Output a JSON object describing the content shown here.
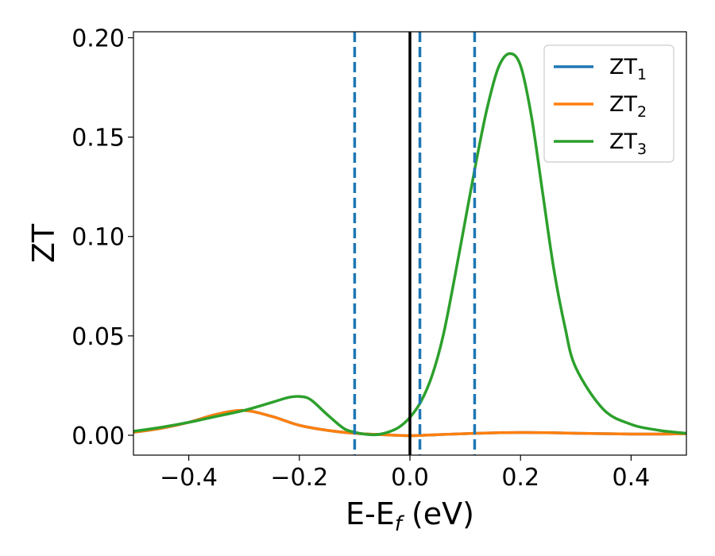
{
  "chart_data": {
    "type": "line",
    "xlabel_main": "E-E",
    "xlabel_sub": "f",
    "xlabel_unit": " (eV)",
    "ylabel": "ZT",
    "xlim": [
      -0.5,
      0.5
    ],
    "ylim": [
      -0.01,
      0.203
    ],
    "xticks": [
      -0.4,
      -0.2,
      0.0,
      0.2,
      0.4
    ],
    "xtick_labels": [
      "−0.4",
      "−0.2",
      "0.0",
      "0.2",
      "0.4"
    ],
    "yticks": [
      0.0,
      0.05,
      0.1,
      0.15,
      0.2
    ],
    "ytick_labels": [
      "0.00",
      "0.05",
      "0.10",
      "0.15",
      "0.20"
    ],
    "legend_position": "top-right",
    "grid": false,
    "vertical_lines": [
      {
        "x": -0.1,
        "style": "dashed",
        "color": "#1f77b4"
      },
      {
        "x": 0.0,
        "style": "solid",
        "color": "#000000"
      },
      {
        "x": 0.018,
        "style": "dashed",
        "color": "#1f77b4"
      },
      {
        "x": 0.117,
        "style": "dashed",
        "color": "#1f77b4"
      }
    ],
    "series": [
      {
        "name": "ZT",
        "name_sub": "1",
        "color": "#1f77b4",
        "x": [
          -0.5,
          -0.45,
          -0.4,
          -0.35,
          -0.3,
          -0.25,
          -0.2,
          -0.15,
          -0.1,
          -0.05,
          0.0,
          0.05,
          0.1,
          0.15,
          0.2,
          0.25,
          0.3,
          0.35,
          0.4,
          0.45,
          0.5
        ],
        "y": [
          0.0015,
          0.0035,
          0.0065,
          0.0105,
          0.0125,
          0.0095,
          0.005,
          0.0025,
          0.001,
          0.0003,
          -0.0002,
          0.0003,
          0.0008,
          0.0012,
          0.0014,
          0.0013,
          0.001,
          0.0008,
          0.0006,
          0.0006,
          0.0008
        ]
      },
      {
        "name": "ZT",
        "name_sub": "2",
        "color": "#ff7f0e",
        "x": [
          -0.5,
          -0.45,
          -0.4,
          -0.35,
          -0.3,
          -0.25,
          -0.2,
          -0.15,
          -0.1,
          -0.05,
          0.0,
          0.05,
          0.1,
          0.15,
          0.2,
          0.25,
          0.3,
          0.35,
          0.4,
          0.45,
          0.5
        ],
        "y": [
          0.0015,
          0.0035,
          0.0065,
          0.0105,
          0.0125,
          0.0095,
          0.005,
          0.0025,
          0.001,
          0.0003,
          -0.0002,
          0.0003,
          0.0008,
          0.0012,
          0.0014,
          0.0013,
          0.001,
          0.0008,
          0.0006,
          0.0006,
          0.0008
        ]
      },
      {
        "name": "ZT",
        "name_sub": "3",
        "color": "#2ca02c",
        "x": [
          -0.5,
          -0.45,
          -0.4,
          -0.35,
          -0.3,
          -0.25,
          -0.22,
          -0.2,
          -0.18,
          -0.15,
          -0.12,
          -0.1,
          -0.08,
          -0.06,
          -0.04,
          -0.02,
          0.0,
          0.02,
          0.04,
          0.06,
          0.08,
          0.1,
          0.12,
          0.14,
          0.16,
          0.18,
          0.2,
          0.22,
          0.24,
          0.26,
          0.28,
          0.3,
          0.35,
          0.4,
          0.45,
          0.5
        ],
        "y": [
          0.002,
          0.004,
          0.0065,
          0.0095,
          0.0125,
          0.0165,
          0.019,
          0.0195,
          0.018,
          0.0105,
          0.0035,
          0.0015,
          0.0005,
          0.0003,
          0.0015,
          0.004,
          0.009,
          0.017,
          0.03,
          0.05,
          0.078,
          0.108,
          0.138,
          0.165,
          0.185,
          0.192,
          0.186,
          0.16,
          0.122,
          0.084,
          0.055,
          0.034,
          0.013,
          0.0055,
          0.0025,
          0.001
        ]
      }
    ]
  }
}
